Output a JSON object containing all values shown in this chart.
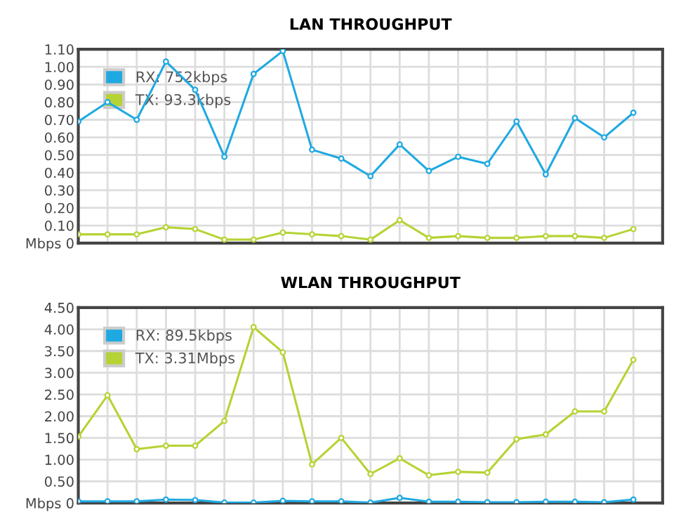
{
  "chart_data": [
    {
      "type": "line",
      "title": "LAN THROUGHPUT",
      "categories": [
        null,
        null,
        null,
        null,
        null,
        null,
        null,
        null,
        null,
        null,
        null,
        null,
        null,
        null,
        null,
        null,
        null,
        null,
        null,
        null
      ],
      "series": [
        {
          "name": "RX: 752kbps",
          "color": "#1fa9e1",
          "values": [
            0.69,
            0.8,
            0.7,
            1.03,
            0.87,
            0.49,
            0.96,
            1.09,
            0.53,
            0.48,
            0.38,
            0.56,
            0.41,
            0.49,
            0.45,
            0.69,
            0.39,
            0.71,
            0.6,
            0.74
          ]
        },
        {
          "name": "TX: 93.3kbps",
          "color": "#b5d334",
          "values": [
            0.05,
            0.05,
            0.05,
            0.09,
            0.08,
            0.02,
            0.02,
            0.06,
            0.05,
            0.04,
            0.02,
            0.13,
            0.03,
            0.04,
            0.03,
            0.03,
            0.04,
            0.04,
            0.03,
            0.08
          ]
        }
      ],
      "ylim": [
        0,
        1.1
      ],
      "yticks": [
        {
          "value": 0,
          "label": "Mbps 0"
        },
        {
          "value": 0.1,
          "label": "0.10"
        },
        {
          "value": 0.2,
          "label": "0.20"
        },
        {
          "value": 0.3,
          "label": "0.30"
        },
        {
          "value": 0.4,
          "label": "0.40"
        },
        {
          "value": 0.5,
          "label": "0.50"
        },
        {
          "value": 0.6,
          "label": "0.60"
        },
        {
          "value": 0.7,
          "label": "0.70"
        },
        {
          "value": 0.8,
          "label": "0.80"
        },
        {
          "value": 0.9,
          "label": "0.90"
        },
        {
          "value": 1.0,
          "label": "1.00"
        },
        {
          "value": 1.1,
          "label": "1.10"
        }
      ],
      "grid": true,
      "legend": "top left",
      "marker": "circle",
      "line_style": "solid"
    },
    {
      "type": "line",
      "title": "WLAN THROUGHPUT",
      "categories": [
        null,
        null,
        null,
        null,
        null,
        null,
        null,
        null,
        null,
        null,
        null,
        null,
        null,
        null,
        null,
        null,
        null,
        null,
        null,
        null
      ],
      "series": [
        {
          "name": "RX: 89.5kbps",
          "color": "#1fa9e1",
          "values": [
            0.04,
            0.04,
            0.04,
            0.08,
            0.07,
            0.01,
            0.01,
            0.05,
            0.04,
            0.04,
            0.01,
            0.12,
            0.03,
            0.03,
            0.02,
            0.02,
            0.03,
            0.03,
            0.02,
            0.08
          ]
        },
        {
          "name": "TX: 3.31Mbps",
          "color": "#b5d334",
          "values": [
            1.53,
            2.48,
            1.24,
            1.32,
            1.32,
            1.89,
            4.05,
            3.47,
            0.89,
            1.5,
            0.67,
            1.03,
            0.64,
            0.72,
            0.7,
            1.47,
            1.58,
            2.11,
            2.11,
            3.3
          ]
        }
      ],
      "ylim": [
        0,
        4.5
      ],
      "yticks": [
        {
          "value": 0,
          "label": "Mbps 0"
        },
        {
          "value": 0.5,
          "label": "0.50"
        },
        {
          "value": 1.0,
          "label": "1.00"
        },
        {
          "value": 1.5,
          "label": "1.50"
        },
        {
          "value": 2.0,
          "label": "2.00"
        },
        {
          "value": 2.5,
          "label": "2.50"
        },
        {
          "value": 3.0,
          "label": "3.00"
        },
        {
          "value": 3.5,
          "label": "3.50"
        },
        {
          "value": 4.0,
          "label": "4.00"
        },
        {
          "value": 4.5,
          "label": "4.50"
        }
      ],
      "grid": true,
      "legend": "top left",
      "marker": "circle",
      "line_style": "solid"
    }
  ]
}
